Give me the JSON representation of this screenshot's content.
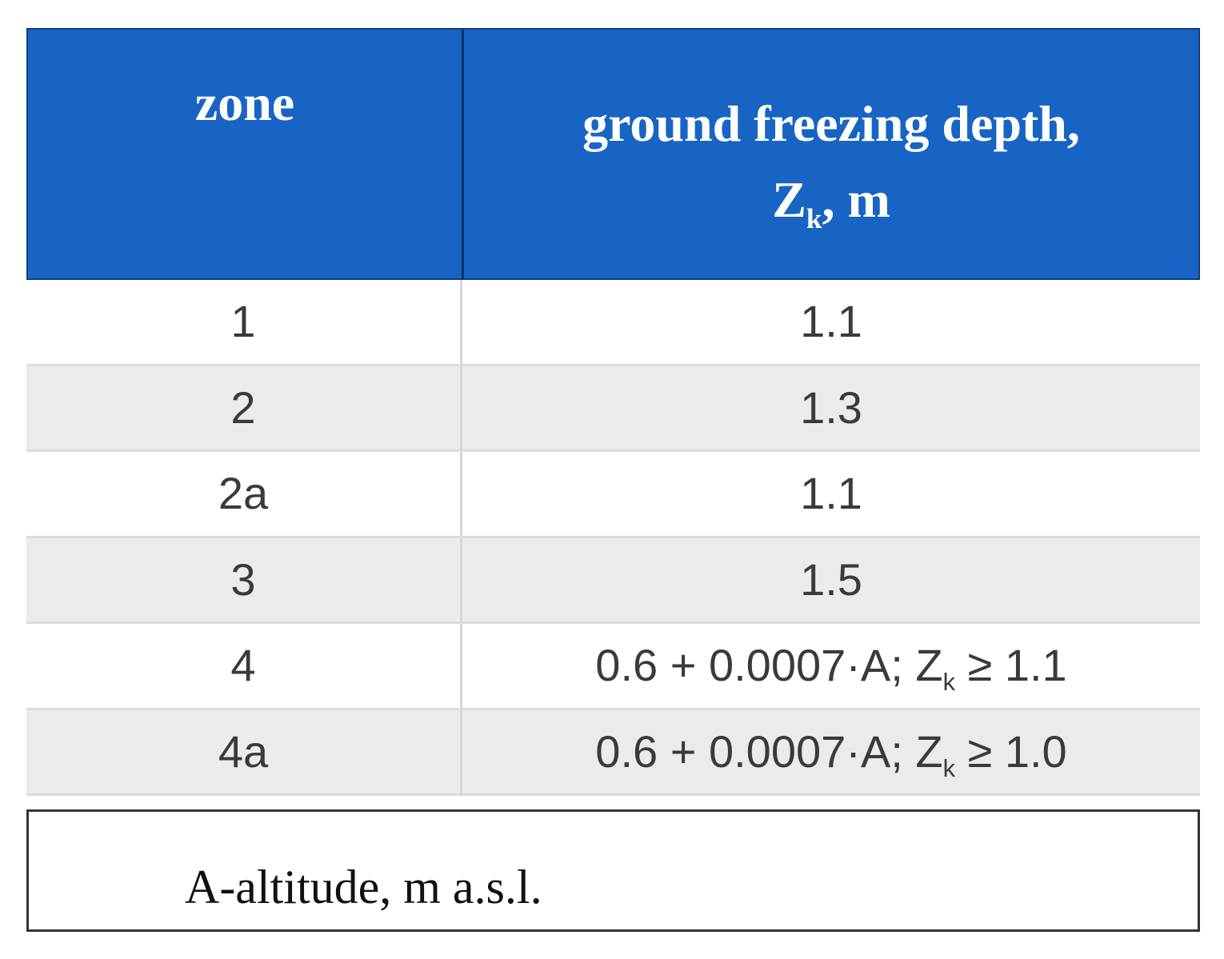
{
  "table": {
    "header": {
      "zone": "zone",
      "depth": "ground freezing depth,",
      "depth_symbol": "Z",
      "depth_sub": "k",
      "depth_unit": ", m"
    },
    "rows": [
      {
        "zone": "1",
        "depth": "1.1"
      },
      {
        "zone": "2",
        "depth": "1.3"
      },
      {
        "zone": "2a",
        "depth": "1.1"
      },
      {
        "zone": "3",
        "depth": "1.5"
      },
      {
        "zone": "4",
        "depth": "0.6 + 0.0007·A; Z",
        "depth_sub": "k",
        "depth_after": " ≥ 1.1"
      },
      {
        "zone": "4a",
        "depth": "0.6 + 0.0007·A; Z",
        "depth_sub": "k",
        "depth_after": " ≥ 1.0"
      }
    ]
  },
  "footnote": "A-altitude, m a.s.l."
}
